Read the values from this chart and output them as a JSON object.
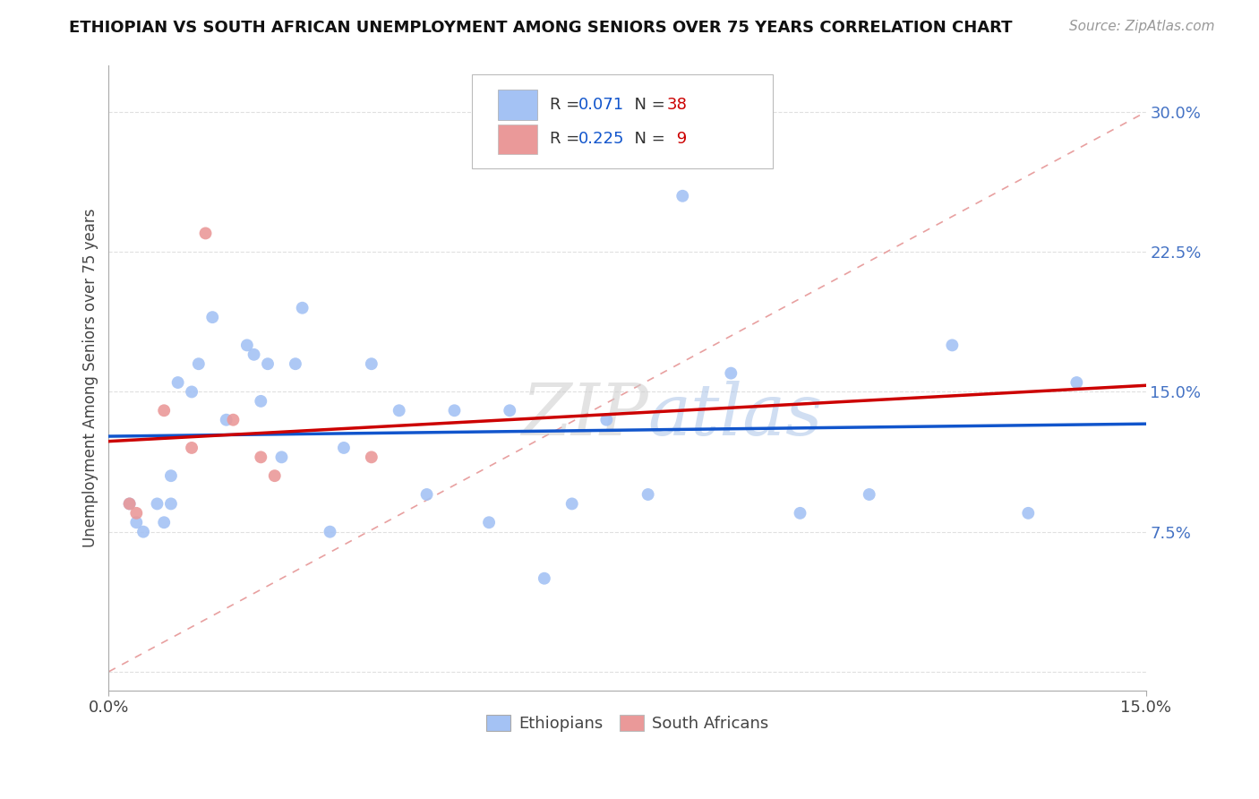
{
  "title": "ETHIOPIAN VS SOUTH AFRICAN UNEMPLOYMENT AMONG SENIORS OVER 75 YEARS CORRELATION CHART",
  "source": "Source: ZipAtlas.com",
  "ylabel_label": "Unemployment Among Seniors over 75 years",
  "ylabel_ticks": [
    0.0,
    0.075,
    0.15,
    0.225,
    0.3
  ],
  "ylabel_tick_labels": [
    "",
    "7.5%",
    "15.0%",
    "22.5%",
    "30.0%"
  ],
  "xlim": [
    0.0,
    0.15
  ],
  "ylim": [
    -0.01,
    0.325
  ],
  "ethiopians_x": [
    0.003,
    0.004,
    0.005,
    0.007,
    0.008,
    0.009,
    0.009,
    0.01,
    0.012,
    0.013,
    0.015,
    0.017,
    0.02,
    0.021,
    0.022,
    0.023,
    0.025,
    0.027,
    0.028,
    0.032,
    0.034,
    0.038,
    0.042,
    0.046,
    0.05,
    0.055,
    0.058,
    0.063,
    0.067,
    0.072,
    0.078,
    0.083,
    0.09,
    0.1,
    0.11,
    0.122,
    0.133,
    0.14
  ],
  "ethiopians_y": [
    0.09,
    0.08,
    0.075,
    0.09,
    0.08,
    0.09,
    0.105,
    0.155,
    0.15,
    0.165,
    0.19,
    0.135,
    0.175,
    0.17,
    0.145,
    0.165,
    0.115,
    0.165,
    0.195,
    0.075,
    0.12,
    0.165,
    0.14,
    0.095,
    0.14,
    0.08,
    0.14,
    0.05,
    0.09,
    0.135,
    0.095,
    0.255,
    0.16,
    0.085,
    0.095,
    0.175,
    0.085,
    0.155
  ],
  "south_africans_x": [
    0.003,
    0.004,
    0.008,
    0.012,
    0.014,
    0.018,
    0.022,
    0.024,
    0.038
  ],
  "south_africans_y": [
    0.09,
    0.085,
    0.14,
    0.12,
    0.235,
    0.135,
    0.115,
    0.105,
    0.115
  ],
  "ethiopian_color": "#a4c2f4",
  "south_african_color": "#ea9999",
  "trendline_eth_color": "#1155cc",
  "trendline_sa_color": "#cc0000",
  "diag_line_color": "#e06666",
  "background_color": "#ffffff",
  "plot_bg_color": "#ffffff",
  "grid_color": "#e0e0e0",
  "legend_r_eth": "R = 0.071",
  "legend_n_eth": "N = 38",
  "legend_r_sa": "R = 0.225",
  "legend_n_sa": "N =  9"
}
